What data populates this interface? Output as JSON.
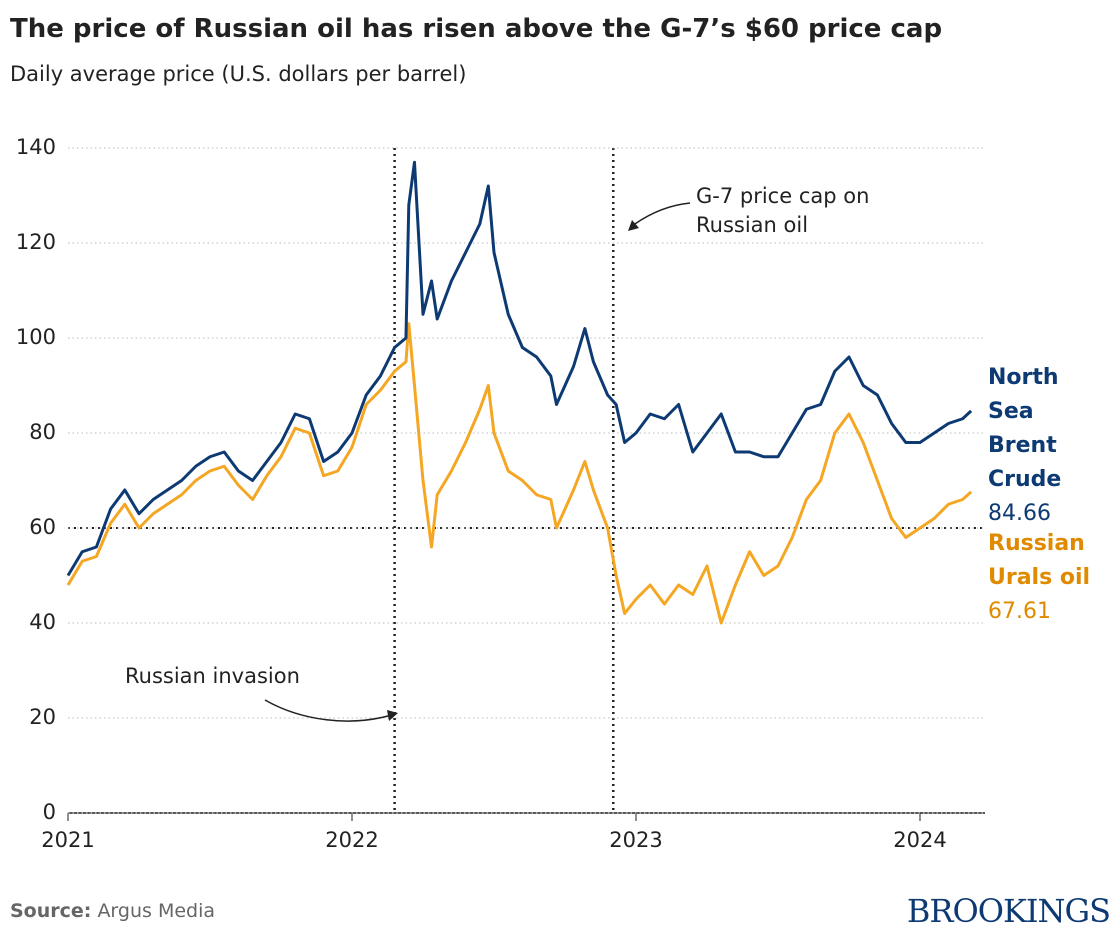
{
  "chart_data": {
    "type": "line",
    "title": "The price of Russian oil has risen above the G-7’s $60 price cap",
    "subtitle": "Daily average price (U.S. dollars per barrel)",
    "x": [
      2021.0,
      2021.05,
      2021.1,
      2021.15,
      2021.2,
      2021.25,
      2021.3,
      2021.35,
      2021.4,
      2021.45,
      2021.5,
      2021.55,
      2021.6,
      2021.65,
      2021.7,
      2021.75,
      2021.8,
      2021.85,
      2021.9,
      2021.95,
      2022.0,
      2022.05,
      2022.1,
      2022.15,
      2022.19,
      2022.2,
      2022.22,
      2022.25,
      2022.28,
      2022.3,
      2022.35,
      2022.4,
      2022.45,
      2022.48,
      2022.5,
      2022.55,
      2022.6,
      2022.65,
      2022.7,
      2022.72,
      2022.78,
      2022.82,
      2022.85,
      2022.9,
      2022.93,
      2022.96,
      2023.0,
      2023.05,
      2023.1,
      2023.15,
      2023.2,
      2023.25,
      2023.3,
      2023.35,
      2023.4,
      2023.45,
      2023.5,
      2023.55,
      2023.6,
      2023.65,
      2023.7,
      2023.75,
      2023.8,
      2023.85,
      2023.9,
      2023.95,
      2024.0,
      2024.05,
      2024.1,
      2024.15,
      2024.18
    ],
    "series": [
      {
        "name": "North Sea Brent Crude",
        "color": "#0d3a73",
        "values": [
          50,
          55,
          56,
          64,
          68,
          63,
          66,
          68,
          70,
          73,
          75,
          76,
          72,
          70,
          74,
          78,
          84,
          83,
          74,
          76,
          80,
          88,
          92,
          98,
          100,
          128,
          137,
          105,
          112,
          104,
          112,
          118,
          124,
          132,
          118,
          105,
          98,
          96,
          92,
          86,
          94,
          102,
          95,
          88,
          86,
          78,
          80,
          84,
          83,
          86,
          76,
          80,
          84,
          76,
          76,
          75,
          75,
          80,
          85,
          86,
          93,
          96,
          90,
          88,
          82,
          78,
          78,
          80,
          82,
          83,
          84.66
        ]
      },
      {
        "name": "Russian Urals oil",
        "color": "#f5a623",
        "values": [
          48,
          53,
          54,
          61,
          65,
          60,
          63,
          65,
          67,
          70,
          72,
          73,
          69,
          66,
          71,
          75,
          81,
          80,
          71,
          72,
          77,
          86,
          89,
          93,
          95,
          103,
          90,
          70,
          56,
          67,
          72,
          78,
          85,
          90,
          80,
          72,
          70,
          67,
          66,
          60,
          68,
          74,
          68,
          60,
          50,
          42,
          45,
          48,
          44,
          48,
          46,
          52,
          40,
          48,
          55,
          50,
          52,
          58,
          66,
          70,
          80,
          84,
          78,
          70,
          62,
          58,
          60,
          62,
          65,
          66,
          67.61
        ]
      }
    ],
    "xlim": [
      2021,
      2024.25
    ],
    "xticks": [
      2021,
      2022,
      2023,
      2024
    ],
    "ylim": [
      0,
      140
    ],
    "yticks": [
      0,
      20,
      40,
      60,
      80,
      100,
      120,
      140
    ],
    "grid": true,
    "reference_line": 60,
    "events": [
      {
        "x": 2022.15,
        "label": "Russian invasion"
      },
      {
        "x": 2022.92,
        "label": "G-7 price cap on Russian oil"
      }
    ],
    "source_label": "Source:",
    "source": "Argus Media",
    "brand": "BROOKINGS"
  }
}
